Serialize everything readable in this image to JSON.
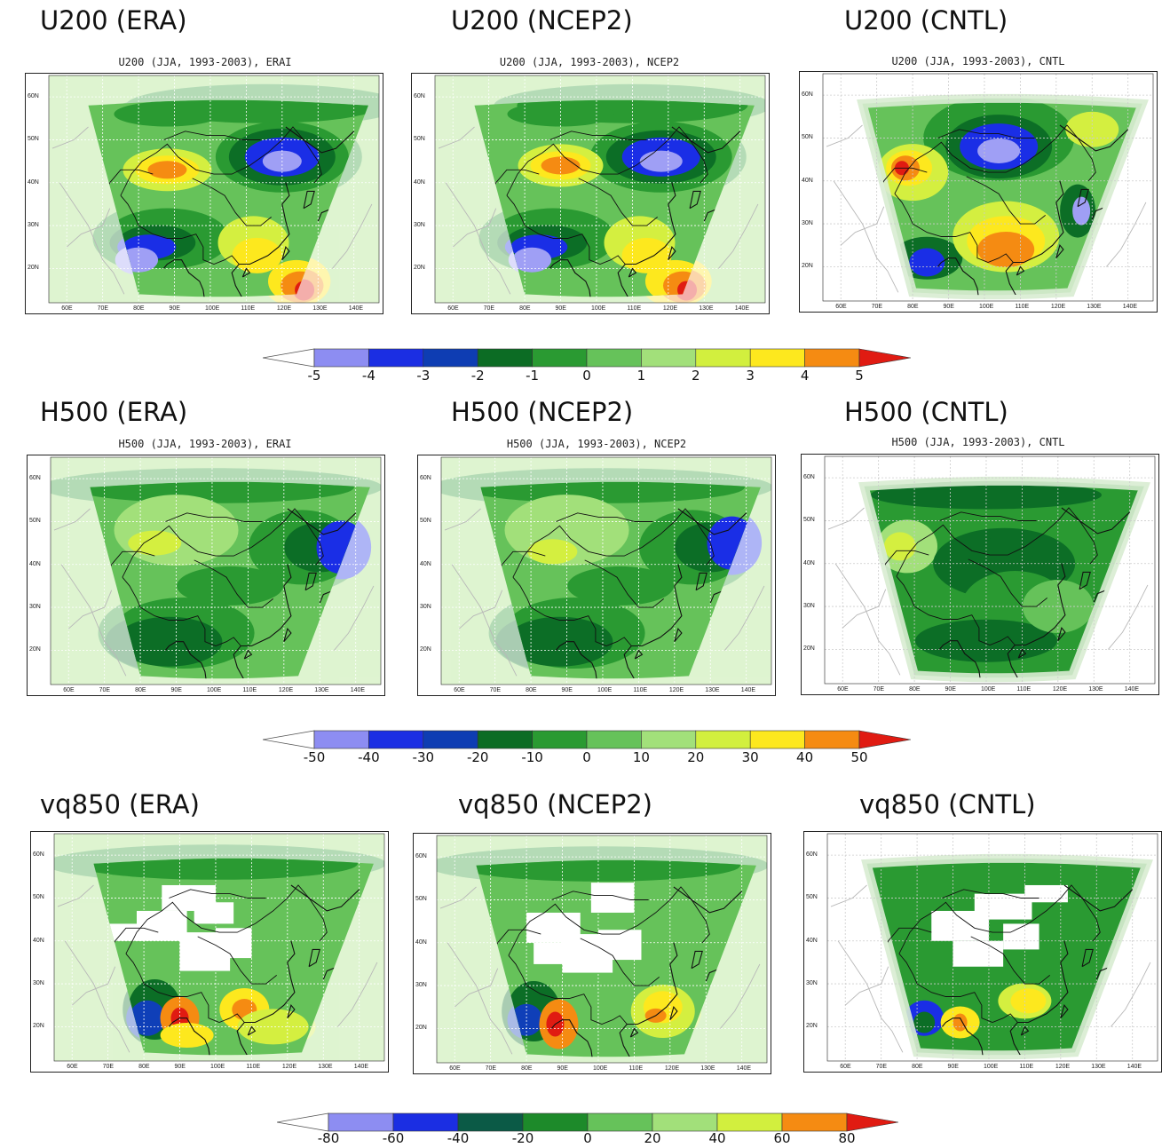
{
  "palette": [
    "#9f9ff5",
    "#1a2ee6",
    "#0f3fb8",
    "#0c6e26",
    "#2a9a32",
    "#66c25a",
    "#a2e07a",
    "#d4ef40",
    "#fde81e",
    "#f58b12",
    "#e01b12"
  ],
  "rows": [
    {
      "id": "u200",
      "panels": [
        {
          "title": "U200 (ERA)",
          "subtitle": "U200 (JJA, 1993-2003), ERAI",
          "lat_ticks": [
            "60N",
            "50N",
            "40N",
            "30N",
            "20N"
          ],
          "lon_ticks": [
            "60E",
            "70E",
            "80E",
            "90E",
            "100E",
            "110E",
            "120E",
            "130E",
            "140E"
          ]
        },
        {
          "title": "U200 (NCEP2)",
          "subtitle": "U200 (JJA, 1993-2003), NCEP2",
          "lat_ticks": [
            "60N",
            "50N",
            "40N",
            "30N",
            "20N"
          ],
          "lon_ticks": [
            "60E",
            "70E",
            "80E",
            "90E",
            "100E",
            "110E",
            "120E",
            "130E",
            "140E"
          ]
        },
        {
          "title": "U200 (CNTL)",
          "subtitle": "U200 (JJA, 1993-2003), CNTL",
          "lat_ticks": [
            "60N",
            "50N",
            "40N",
            "30N",
            "20N"
          ],
          "lon_ticks": [
            "60E",
            "70E",
            "80E",
            "90E",
            "100E",
            "110E",
            "120E",
            "130E",
            "140E"
          ]
        }
      ],
      "colorbar": {
        "labels": [
          "-5",
          "-4",
          "-3",
          "-2",
          "-1",
          "0",
          "1",
          "2",
          "3",
          "4",
          "5"
        ]
      }
    },
    {
      "id": "h500",
      "panels": [
        {
          "title": "H500 (ERA)",
          "subtitle": "H500 (JJA, 1993-2003), ERAI",
          "lat_ticks": [
            "60N",
            "50N",
            "40N",
            "30N",
            "20N"
          ],
          "lon_ticks": [
            "60E",
            "70E",
            "80E",
            "90E",
            "100E",
            "110E",
            "120E",
            "130E",
            "140E"
          ]
        },
        {
          "title": "H500 (NCEP2)",
          "subtitle": "H500 (JJA, 1993-2003), NCEP2",
          "lat_ticks": [
            "60N",
            "50N",
            "40N",
            "30N",
            "20N"
          ],
          "lon_ticks": [
            "60E",
            "70E",
            "80E",
            "90E",
            "100E",
            "110E",
            "120E",
            "130E",
            "140E"
          ]
        },
        {
          "title": "H500 (CNTL)",
          "subtitle": "H500 (JJA, 1993-2003), CNTL",
          "lat_ticks": [
            "60N",
            "50N",
            "40N",
            "30N",
            "20N"
          ],
          "lon_ticks": [
            "60E",
            "70E",
            "80E",
            "90E",
            "100E",
            "110E",
            "120E",
            "130E",
            "140E"
          ]
        }
      ],
      "colorbar": {
        "labels": [
          "-50",
          "-40",
          "-30",
          "-20",
          "-10",
          "0",
          "10",
          "20",
          "30",
          "40",
          "50"
        ]
      }
    },
    {
      "id": "vq850",
      "panels": [
        {
          "title": "vq850 (ERA)",
          "subtitle": "",
          "lat_ticks": [
            "60N",
            "50N",
            "40N",
            "30N",
            "20N"
          ],
          "lon_ticks": [
            "60E",
            "70E",
            "80E",
            "90E",
            "100E",
            "110E",
            "120E",
            "130E",
            "140E"
          ]
        },
        {
          "title": "vq850 (NCEP2)",
          "subtitle": "",
          "lat_ticks": [
            "60N",
            "50N",
            "40N",
            "30N",
            "20N"
          ],
          "lon_ticks": [
            "60E",
            "70E",
            "80E",
            "90E",
            "100E",
            "110E",
            "120E",
            "130E",
            "140E"
          ]
        },
        {
          "title": "vq850 (CNTL)",
          "subtitle": "",
          "lat_ticks": [
            "60N",
            "50N",
            "40N",
            "30N",
            "20N"
          ],
          "lon_ticks": [
            "60E",
            "70E",
            "80E",
            "90E",
            "100E",
            "110E",
            "120E",
            "130E",
            "140E"
          ]
        }
      ],
      "colorbar": {
        "labels": [
          "-80",
          "-60",
          "-40",
          "-20",
          "0",
          "20",
          "40",
          "60",
          "80"
        ]
      }
    }
  ]
}
